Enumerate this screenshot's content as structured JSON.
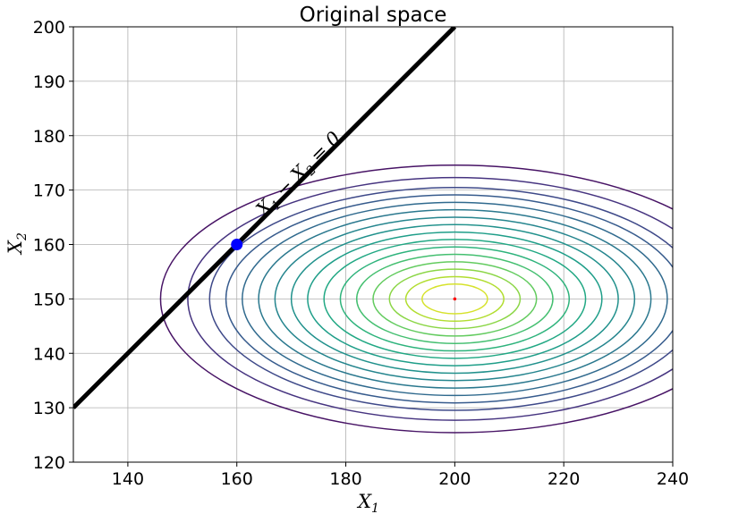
{
  "chart_data": {
    "type": "contour",
    "title": "Original space",
    "xlabel": "X",
    "xlabel_sub": "1",
    "ylabel": "X",
    "ylabel_sub": "2",
    "xlim": [
      130,
      240
    ],
    "ylim": [
      120,
      200
    ],
    "xticks": [
      140,
      160,
      180,
      200,
      220,
      240
    ],
    "yticks": [
      120,
      130,
      140,
      150,
      160,
      170,
      180,
      190,
      200
    ],
    "grid": true,
    "contours": {
      "center": [
        200,
        150
      ],
      "x_semi_axes": [
        6,
        9,
        12,
        15,
        18,
        21,
        24,
        27,
        30,
        33,
        36,
        39,
        42,
        45,
        49,
        54
      ],
      "y_to_x_ratio": 0.455,
      "colormap": "viridis",
      "colors": [
        "#d6e22b",
        "#b1dd2f",
        "#8bd646",
        "#63cb5f",
        "#44bf70",
        "#2eb37c",
        "#22a884",
        "#1f9e89",
        "#21918c",
        "#25858e",
        "#2a788e",
        "#306a8e",
        "#375b8d",
        "#3e4989",
        "#463480",
        "#471365"
      ]
    },
    "center_marker": {
      "x": 200,
      "y": 150,
      "color": "#ff0000"
    },
    "line": {
      "x": [
        130,
        200
      ],
      "y": [
        130,
        200
      ],
      "color": "#000000",
      "label": "X_1 − X_2 = 0"
    },
    "point": {
      "x": 160,
      "y": 160,
      "color": "#0000ff"
    },
    "annotation": {
      "parts": [
        {
          "text": "X",
          "sub": false
        },
        {
          "text": "1",
          "sub": true
        },
        {
          "text": " − X",
          "sub": false
        },
        {
          "text": "2",
          "sub": true
        },
        {
          "text": " = 0",
          "sub": false
        }
      ],
      "at": [
        163,
        167
      ]
    }
  }
}
